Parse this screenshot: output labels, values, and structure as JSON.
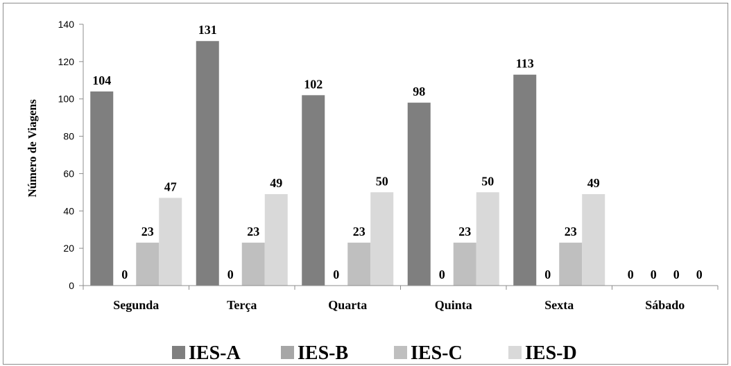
{
  "chart_data": {
    "type": "bar",
    "categories": [
      "Segunda",
      "Terça",
      "Quarta",
      "Quinta",
      "Sexta",
      "Sábado"
    ],
    "series": [
      {
        "name": "IES-A",
        "color": "#7f7f7f",
        "values": [
          104,
          131,
          102,
          98,
          113,
          0
        ]
      },
      {
        "name": "IES-B",
        "color": "#a6a6a6",
        "values": [
          0,
          0,
          0,
          0,
          0,
          0
        ]
      },
      {
        "name": "IES-C",
        "color": "#bfbfbf",
        "values": [
          23,
          23,
          23,
          23,
          23,
          0
        ]
      },
      {
        "name": "IES-D",
        "color": "#d9d9d9",
        "values": [
          47,
          49,
          50,
          50,
          49,
          0
        ]
      }
    ],
    "ylabel": "Número de Viagens",
    "xlabel": "",
    "ylim": [
      0,
      140
    ],
    "yticks": [
      0,
      20,
      40,
      60,
      80,
      100,
      120,
      140
    ],
    "grid": false,
    "legend_position": "bottom"
  }
}
